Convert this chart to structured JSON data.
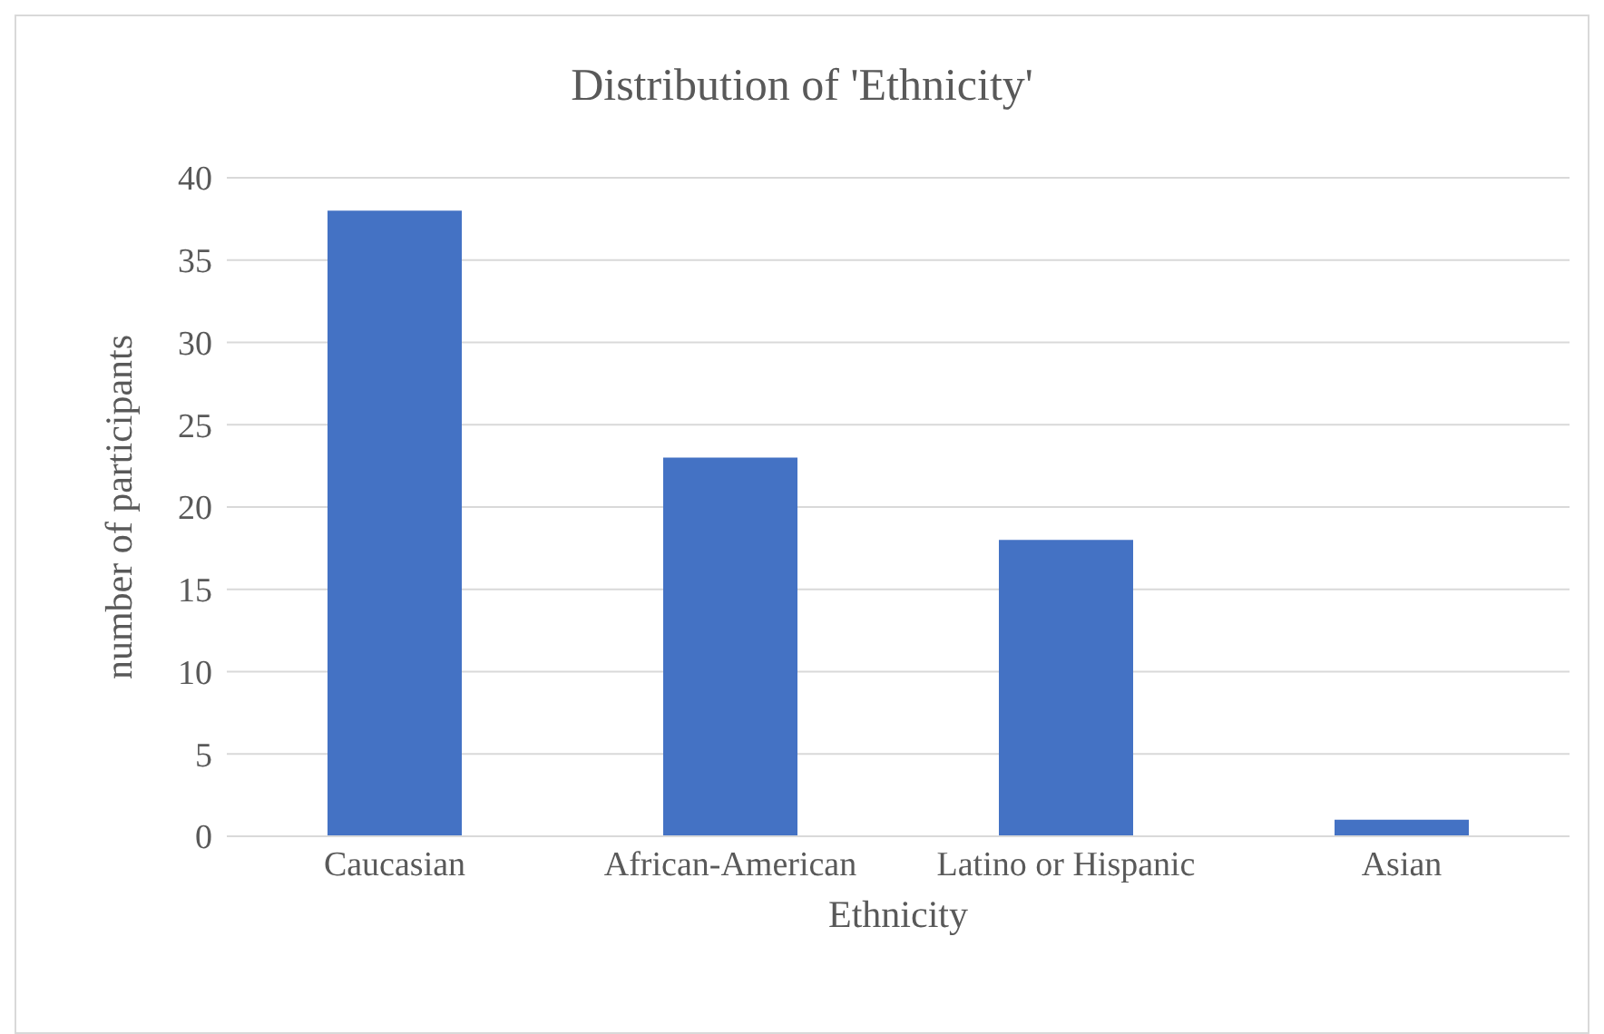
{
  "chart_data": {
    "type": "bar",
    "title": "Distribution of 'Ethnicity'",
    "xlabel": "Ethnicity",
    "ylabel": "number of participants",
    "categories": [
      "Caucasian",
      "African-American",
      "Latino or Hispanic",
      "Asian"
    ],
    "values": [
      38,
      23,
      18,
      1
    ],
    "color": "#4472c4",
    "ylim": [
      0,
      40
    ],
    "yticks": [
      0,
      5,
      10,
      15,
      20,
      25,
      30,
      35,
      40
    ],
    "grid": "y"
  }
}
